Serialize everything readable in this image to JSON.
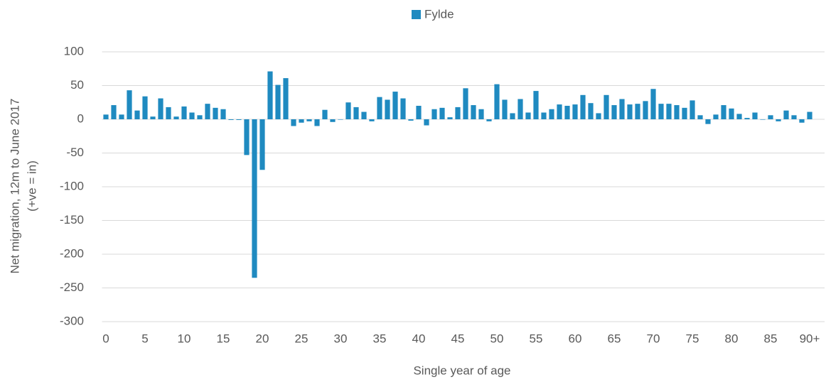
{
  "chart_data": {
    "type": "bar",
    "x_label": "Single year of age",
    "y_label": [
      "Net migration, 12m to June 2017",
      "(+ve = in)"
    ],
    "categories": [
      "0",
      null,
      null,
      null,
      null,
      "5",
      null,
      null,
      null,
      null,
      "10",
      null,
      null,
      null,
      null,
      "15",
      null,
      null,
      null,
      null,
      "20",
      null,
      null,
      null,
      null,
      "25",
      null,
      null,
      null,
      null,
      "30",
      null,
      null,
      null,
      null,
      "35",
      null,
      null,
      null,
      null,
      "40",
      null,
      null,
      null,
      null,
      "45",
      null,
      null,
      null,
      null,
      "50",
      null,
      null,
      null,
      null,
      "55",
      null,
      null,
      null,
      null,
      "60",
      null,
      null,
      null,
      null,
      "65",
      null,
      null,
      null,
      null,
      "70",
      null,
      null,
      null,
      null,
      "75",
      null,
      null,
      null,
      null,
      "80",
      null,
      null,
      null,
      null,
      "85",
      null,
      null,
      null,
      null,
      "90+"
    ],
    "series": [
      {
        "name": "Fylde",
        "color": "#1f8ac0",
        "values": [
          7,
          21,
          7,
          43,
          13,
          34,
          4,
          31,
          18,
          4,
          19,
          10,
          6,
          23,
          17,
          15,
          -1,
          -1,
          -53,
          -235,
          -75,
          71,
          51,
          61,
          -10,
          -5,
          -3,
          -10,
          14,
          -4,
          0,
          25,
          18,
          11,
          -3,
          33,
          29,
          41,
          31,
          -2,
          20,
          -9,
          15,
          17,
          3,
          18,
          46,
          21,
          15,
          -3,
          52,
          29,
          9,
          30,
          10,
          42,
          10,
          15,
          22,
          20,
          22,
          36,
          24,
          9,
          36,
          21,
          30,
          22,
          23,
          27,
          45,
          23,
          23,
          21,
          17,
          28,
          6,
          -7,
          7,
          21,
          16,
          8,
          2,
          10,
          0,
          6,
          -3,
          13,
          6,
          -5,
          11
        ]
      }
    ],
    "ylim": [
      -300,
      100
    ],
    "yticks": [
      100,
      50,
      0,
      -50,
      -100,
      -150,
      -200,
      -250,
      -300
    ],
    "grid": true,
    "legend": "top"
  }
}
